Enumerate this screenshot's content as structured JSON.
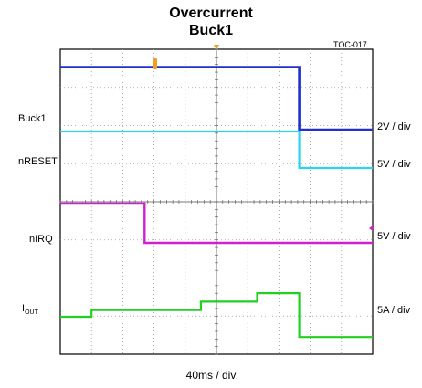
{
  "chart_data": {
    "type": "line",
    "title": "Overcurrent",
    "subtitle": "Buck1",
    "figure_id": "TOC-017",
    "xlabel": "40ms / div",
    "x_divisions": 10,
    "y_divisions": 8,
    "x": [
      0.0,
      1.0,
      2.65,
      2.7,
      4.5,
      5.0,
      6.3,
      7.6,
      7.65,
      10.0
    ],
    "series": [
      {
        "name": "Buck1",
        "scale": "2V / div",
        "color": "#1f2fd0",
        "y": [
          1.85,
          1.85,
          1.85,
          1.85,
          1.85,
          1.85,
          1.85,
          1.85,
          0.0,
          0.0
        ]
      },
      {
        "name": "nRESET",
        "scale": "5V / div",
        "color": "#2ad4f0",
        "y": [
          1.0,
          1.0,
          1.0,
          1.0,
          1.0,
          1.0,
          1.0,
          1.0,
          0.0,
          0.0
        ]
      },
      {
        "name": "nIRQ",
        "scale": "5V / div",
        "color": "#d020d0",
        "y": [
          1.0,
          1.0,
          1.0,
          0.0,
          0.0,
          0.0,
          0.0,
          0.0,
          0.0,
          0.0
        ]
      },
      {
        "name": "IOUT",
        "scale": "5A / div",
        "color": "#22d022",
        "y": [
          0.0,
          0.2,
          0.2,
          0.2,
          0.45,
          0.45,
          0.7,
          0.7,
          -0.6,
          -0.6
        ]
      }
    ]
  }
}
